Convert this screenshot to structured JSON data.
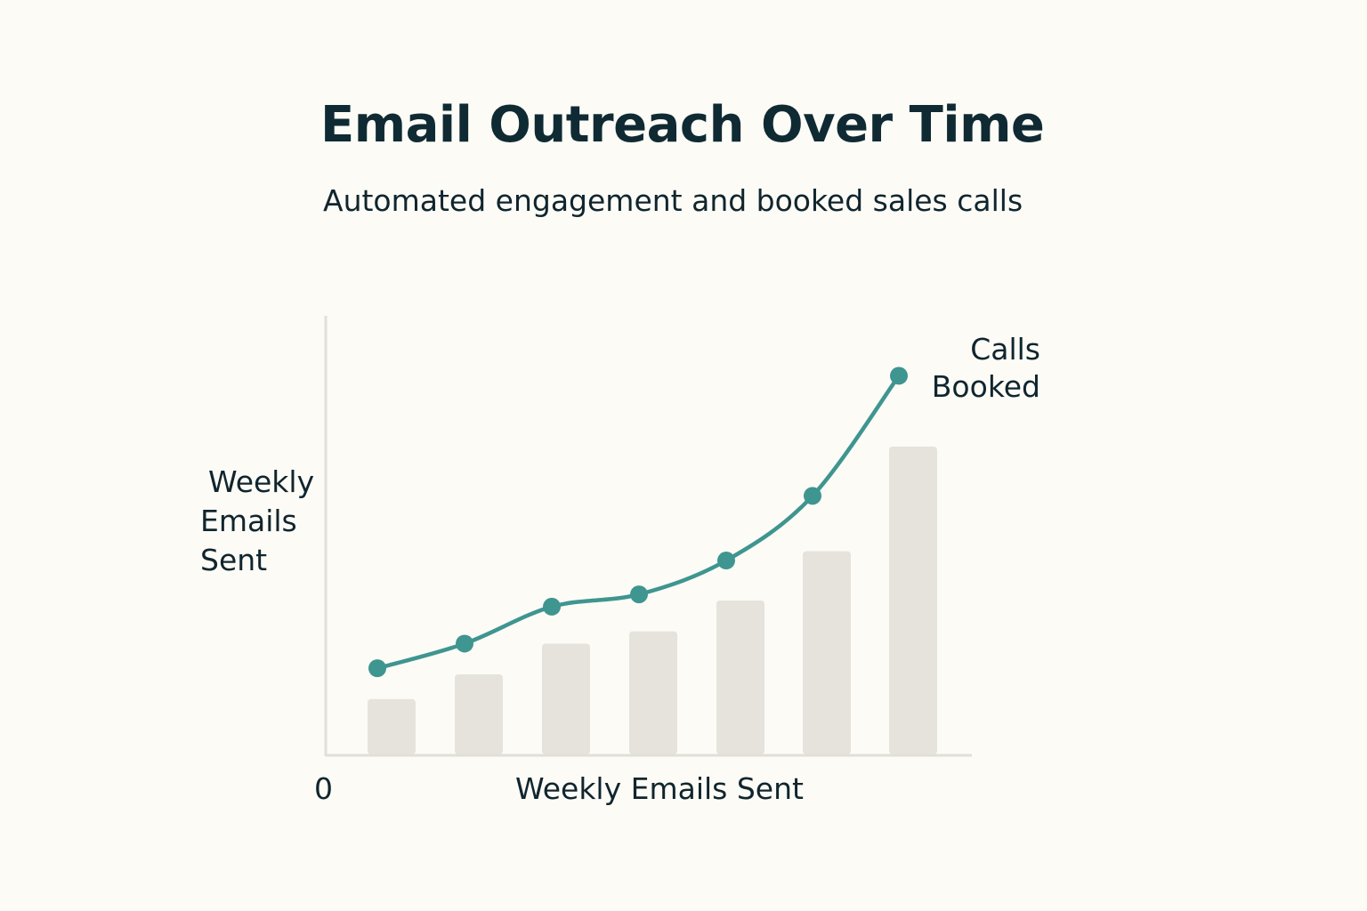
{
  "chart_data": {
    "type": "bar",
    "title": "Email Outreach Over Time",
    "subtitle": "Automated engagement and booked sales calls",
    "xlabel": "Weekly Emails Sent",
    "ylabel": "Weekly Emails Sent",
    "origin_label": "0",
    "ylim": [
      0,
      100
    ],
    "grid": false,
    "series": [
      {
        "kind": "bar",
        "values": [
          18,
          26,
          36,
          40,
          50,
          66,
          100
        ],
        "color": "#e6e3dc"
      },
      {
        "kind": "line",
        "name": "Calls Booked",
        "values": [
          28,
          36,
          48,
          52,
          63,
          84,
          123
        ],
        "color": "#3f9590"
      }
    ]
  }
}
